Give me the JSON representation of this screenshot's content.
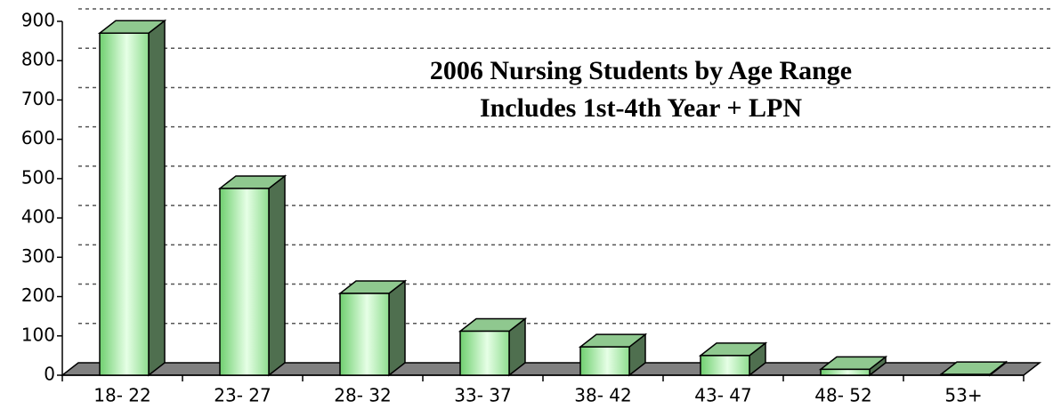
{
  "chart_data": {
    "type": "bar3d",
    "title": "2006 Nursing Students by Age Range",
    "subtitle": "Includes 1st-4th Year + LPN",
    "categories": [
      "18- 22",
      "23- 27",
      "28- 32",
      "33- 37",
      "38- 42",
      "43- 47",
      "48- 52",
      "53+"
    ],
    "values": [
      870,
      475,
      208,
      112,
      72,
      50,
      15,
      2
    ],
    "color": "#9be39b",
    "ylim": [
      0,
      900
    ],
    "yticks": [
      0,
      100,
      200,
      300,
      400,
      500,
      600,
      700,
      800,
      900
    ],
    "grid": true
  }
}
